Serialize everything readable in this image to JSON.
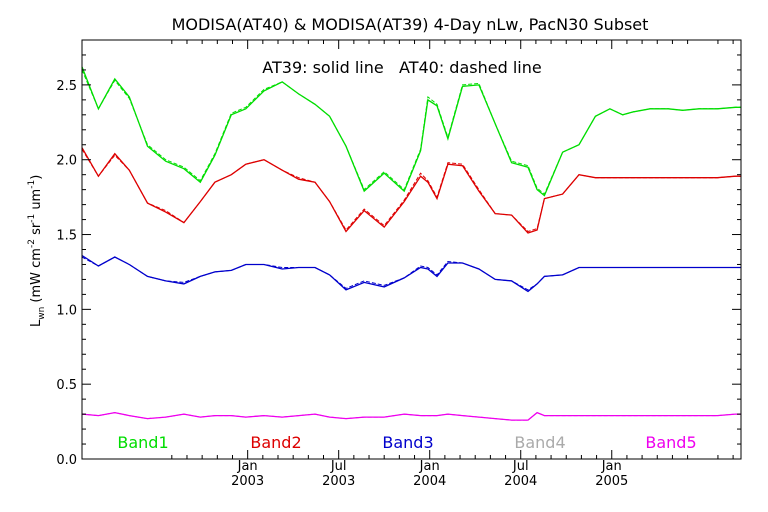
{
  "chart_data": {
    "type": "line",
    "title": "MODISA(AT40) & MODISA(AT39) 4-Day nLw, PacN30 Subset",
    "annotation": "AT39: solid line   AT40: dashed line",
    "ylabel": {
      "base": "L",
      "base_sub": "wn",
      "open": " (mW cm",
      "exp1": "-2",
      "mid1": " sr",
      "exp2": "-1",
      "mid2": " um",
      "exp3": "-1",
      "close": ")"
    },
    "xlim": [
      2002.09,
      2005.71
    ],
    "ylim": [
      0.0,
      2.8
    ],
    "yticks": [
      {
        "value": 0.0,
        "label": "0.0"
      },
      {
        "value": 0.5,
        "label": "0.5"
      },
      {
        "value": 1.0,
        "label": "1.0"
      },
      {
        "value": 1.5,
        "label": "1.5"
      },
      {
        "value": 2.0,
        "label": "2.0"
      },
      {
        "value": 2.5,
        "label": "2.5"
      }
    ],
    "xticks": [
      {
        "value": 2003.0,
        "month": "Jan",
        "year": "2003"
      },
      {
        "value": 2003.5,
        "month": "Jul",
        "year": "2003"
      },
      {
        "value": 2004.0,
        "month": "Jan",
        "year": "2004"
      },
      {
        "value": 2004.5,
        "month": "Jul",
        "year": "2004"
      },
      {
        "value": 2005.0,
        "month": "Jan",
        "year": "2005"
      }
    ],
    "grid": false,
    "series": [
      {
        "name": "Band1",
        "color": "#00dd00",
        "x": [
          2002.09,
          2002.18,
          2002.27,
          2002.35,
          2002.45,
          2002.55,
          2002.65,
          2002.74,
          2002.82,
          2002.91,
          2002.99,
          2003.09,
          2003.19,
          2003.28,
          2003.37,
          2003.45,
          2003.54,
          2003.64,
          2003.75,
          2003.86,
          2003.95,
          2003.99,
          2004.04,
          2004.1,
          2004.18,
          2004.27,
          2004.36,
          2004.45,
          2004.54,
          2004.59,
          2004.63,
          2004.73,
          2004.82,
          2004.91,
          2004.99,
          2005.06,
          2005.12,
          2005.21,
          2005.31,
          2005.39,
          2005.48,
          2005.58,
          2005.68,
          2005.71
        ],
        "y": [
          2.62,
          2.34,
          2.54,
          2.42,
          2.09,
          1.99,
          1.94,
          1.85,
          2.03,
          2.3,
          2.34,
          2.46,
          2.52,
          2.44,
          2.37,
          2.29,
          2.09,
          1.79,
          1.91,
          1.79,
          2.06,
          2.4,
          2.36,
          2.14,
          2.49,
          2.5,
          2.24,
          1.98,
          1.95,
          1.8,
          1.76,
          2.05,
          2.1,
          2.29,
          2.34,
          2.3,
          2.32,
          2.34,
          2.34,
          2.33,
          2.34,
          2.34,
          2.35,
          2.35
        ],
        "y_at40": [
          2.6,
          2.34,
          2.53,
          2.41,
          2.1,
          2.0,
          1.95,
          1.86,
          2.04,
          2.31,
          2.35,
          2.47,
          2.52,
          2.44,
          2.37,
          2.29,
          2.09,
          1.8,
          1.92,
          1.8,
          2.07,
          2.42,
          2.37,
          2.15,
          2.5,
          2.51,
          2.24,
          1.99,
          1.96,
          1.81,
          1.77,
          2.05,
          2.1,
          2.29,
          2.34,
          2.3,
          2.32,
          2.34,
          2.34,
          2.33,
          2.34,
          2.34,
          2.35,
          2.35
        ]
      },
      {
        "name": "Band2",
        "color": "#dd0000",
        "x": [
          2002.09,
          2002.18,
          2002.27,
          2002.35,
          2002.45,
          2002.55,
          2002.65,
          2002.74,
          2002.82,
          2002.91,
          2002.99,
          2003.09,
          2003.19,
          2003.28,
          2003.37,
          2003.45,
          2003.54,
          2003.64,
          2003.75,
          2003.86,
          2003.95,
          2003.99,
          2004.04,
          2004.1,
          2004.18,
          2004.27,
          2004.36,
          2004.45,
          2004.54,
          2004.59,
          2004.63,
          2004.73,
          2004.82,
          2004.91,
          2004.99,
          2005.06,
          2005.12,
          2005.21,
          2005.31,
          2005.39,
          2005.48,
          2005.58,
          2005.68,
          2005.71
        ],
        "y": [
          2.08,
          1.89,
          2.04,
          1.93,
          1.71,
          1.65,
          1.58,
          1.72,
          1.85,
          1.9,
          1.97,
          2.0,
          1.93,
          1.87,
          1.85,
          1.72,
          1.52,
          1.66,
          1.55,
          1.72,
          1.89,
          1.85,
          1.74,
          1.97,
          1.96,
          1.79,
          1.64,
          1.63,
          1.51,
          1.53,
          1.74,
          1.77,
          1.9,
          1.88,
          1.88,
          1.88,
          1.88,
          1.88,
          1.88,
          1.88,
          1.88,
          1.88,
          1.89,
          1.89
        ],
        "y_at40": [
          2.07,
          1.89,
          2.03,
          1.93,
          1.71,
          1.66,
          1.58,
          1.72,
          1.85,
          1.9,
          1.97,
          2.0,
          1.93,
          1.88,
          1.85,
          1.72,
          1.53,
          1.67,
          1.56,
          1.73,
          1.91,
          1.86,
          1.75,
          1.98,
          1.97,
          1.8,
          1.64,
          1.63,
          1.52,
          1.54,
          1.74,
          1.77,
          1.9,
          1.88,
          1.88,
          1.88,
          1.88,
          1.88,
          1.88,
          1.88,
          1.88,
          1.88,
          1.89,
          1.89
        ]
      },
      {
        "name": "Band3",
        "color": "#0000cc",
        "x": [
          2002.09,
          2002.18,
          2002.27,
          2002.35,
          2002.45,
          2002.55,
          2002.65,
          2002.74,
          2002.82,
          2002.91,
          2002.99,
          2003.09,
          2003.19,
          2003.28,
          2003.37,
          2003.45,
          2003.54,
          2003.64,
          2003.75,
          2003.86,
          2003.95,
          2003.99,
          2004.04,
          2004.1,
          2004.18,
          2004.27,
          2004.36,
          2004.45,
          2004.54,
          2004.59,
          2004.63,
          2004.73,
          2004.82,
          2004.91,
          2004.99,
          2005.06,
          2005.12,
          2005.21,
          2005.31,
          2005.39,
          2005.48,
          2005.58,
          2005.68,
          2005.71
        ],
        "y": [
          1.36,
          1.29,
          1.35,
          1.3,
          1.22,
          1.19,
          1.17,
          1.22,
          1.25,
          1.26,
          1.3,
          1.3,
          1.27,
          1.28,
          1.28,
          1.23,
          1.13,
          1.18,
          1.15,
          1.21,
          1.28,
          1.27,
          1.22,
          1.31,
          1.31,
          1.27,
          1.2,
          1.19,
          1.12,
          1.17,
          1.22,
          1.23,
          1.28,
          1.28,
          1.28,
          1.28,
          1.28,
          1.28,
          1.28,
          1.28,
          1.28,
          1.28,
          1.28,
          1.28
        ],
        "y_at40": [
          1.35,
          1.29,
          1.35,
          1.3,
          1.22,
          1.19,
          1.18,
          1.22,
          1.25,
          1.26,
          1.3,
          1.3,
          1.28,
          1.28,
          1.28,
          1.23,
          1.14,
          1.19,
          1.16,
          1.21,
          1.29,
          1.28,
          1.23,
          1.32,
          1.31,
          1.27,
          1.2,
          1.19,
          1.13,
          1.17,
          1.22,
          1.23,
          1.28,
          1.28,
          1.28,
          1.28,
          1.28,
          1.28,
          1.28,
          1.28,
          1.28,
          1.28,
          1.28,
          1.28
        ]
      },
      {
        "name": "Band5",
        "color": "#ee00ee",
        "x": [
          2002.09,
          2002.18,
          2002.27,
          2002.35,
          2002.45,
          2002.55,
          2002.65,
          2002.74,
          2002.82,
          2002.91,
          2002.99,
          2003.09,
          2003.19,
          2003.28,
          2003.37,
          2003.45,
          2003.54,
          2003.64,
          2003.75,
          2003.86,
          2003.95,
          2003.99,
          2004.04,
          2004.1,
          2004.18,
          2004.27,
          2004.36,
          2004.45,
          2004.54,
          2004.59,
          2004.63,
          2004.73,
          2004.82,
          2004.91,
          2004.99,
          2005.06,
          2005.12,
          2005.21,
          2005.31,
          2005.39,
          2005.48,
          2005.58,
          2005.68,
          2005.71
        ],
        "y": [
          0.3,
          0.29,
          0.31,
          0.29,
          0.27,
          0.28,
          0.3,
          0.28,
          0.29,
          0.29,
          0.28,
          0.29,
          0.28,
          0.29,
          0.3,
          0.28,
          0.27,
          0.28,
          0.28,
          0.3,
          0.29,
          0.29,
          0.29,
          0.3,
          0.29,
          0.28,
          0.27,
          0.26,
          0.26,
          0.31,
          0.29,
          0.29,
          0.29,
          0.29,
          0.29,
          0.29,
          0.29,
          0.29,
          0.29,
          0.29,
          0.29,
          0.29,
          0.3,
          0.3
        ],
        "y_at40": [
          0.3,
          0.29,
          0.31,
          0.29,
          0.27,
          0.28,
          0.3,
          0.28,
          0.29,
          0.29,
          0.28,
          0.29,
          0.28,
          0.29,
          0.3,
          0.28,
          0.27,
          0.28,
          0.28,
          0.3,
          0.29,
          0.29,
          0.29,
          0.3,
          0.29,
          0.28,
          0.27,
          0.26,
          0.26,
          0.31,
          0.29,
          0.29,
          0.29,
          0.29,
          0.29,
          0.29,
          0.29,
          0.29,
          0.29,
          0.29,
          0.29,
          0.29,
          0.3,
          0.3
        ]
      }
    ],
    "band_labels": [
      {
        "text": "Band1",
        "color": "#00dd00"
      },
      {
        "text": "Band2",
        "color": "#dd0000"
      },
      {
        "text": "Band3",
        "color": "#0000cc"
      },
      {
        "text": "Band4",
        "color": "#aaaaaa"
      },
      {
        "text": "Band5",
        "color": "#ee00ee"
      }
    ]
  }
}
